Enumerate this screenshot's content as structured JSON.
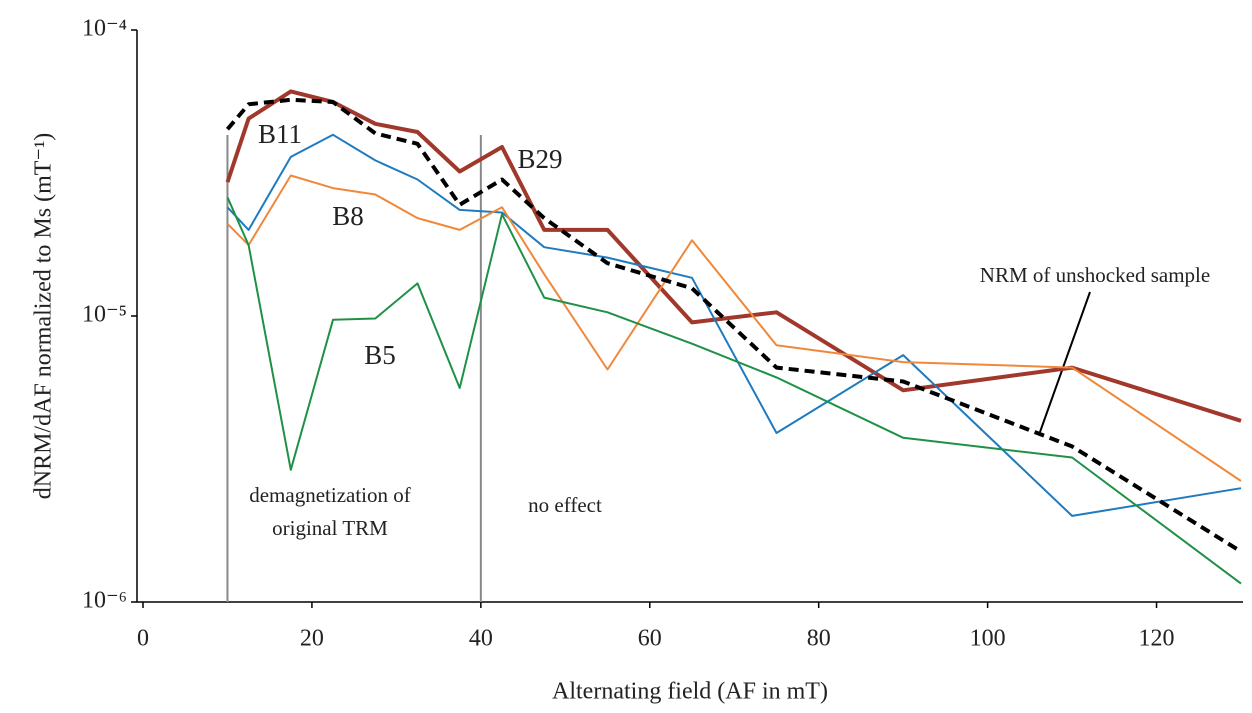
{
  "chart_data": {
    "type": "line",
    "x_label": "Alternating field (AF in mT)",
    "y_label": "dNRM/dAF normalized to Ms (mT⁻¹)",
    "x": [
      10,
      12.5,
      17.5,
      22.5,
      27.5,
      32.5,
      37.5,
      42.5,
      47.5,
      55,
      65,
      75,
      90,
      110,
      130
    ],
    "series": [
      {
        "name": "B29",
        "color": "#a0382b",
        "width": 4,
        "dash": false,
        "values": [
          2.94e-05,
          4.9e-05,
          6.1e-05,
          5.6e-05,
          4.7e-05,
          4.4e-05,
          3.2e-05,
          3.9e-05,
          2e-05,
          2e-05,
          9.5e-06,
          1.03e-05,
          5.5e-06,
          6.6e-06,
          4.3e-06
        ]
      },
      {
        "name": "B11",
        "color": "#1f7bbf",
        "width": 2,
        "dash": false,
        "values": [
          2.4e-05,
          2e-05,
          3.6e-05,
          4.3e-05,
          3.5e-05,
          3e-05,
          2.35e-05,
          2.3e-05,
          1.74e-05,
          1.6e-05,
          1.36e-05,
          3.9e-06,
          7.3e-06,
          2e-06,
          2.5e-06
        ]
      },
      {
        "name": "B8",
        "color": "#f0883a",
        "width": 2,
        "dash": false,
        "values": [
          2.1e-05,
          1.77e-05,
          3.1e-05,
          2.8e-05,
          2.66e-05,
          2.2e-05,
          2e-05,
          2.4e-05,
          1.4e-05,
          6.5e-06,
          1.84e-05,
          7.9e-06,
          6.9e-06,
          6.6e-06,
          2.65e-06
        ]
      },
      {
        "name": "B5",
        "color": "#1f9146",
        "width": 2,
        "dash": false,
        "values": [
          2.6e-05,
          1.77e-05,
          2.9e-06,
          9.7e-06,
          9.8e-06,
          1.3e-05,
          5.6e-06,
          2.27e-05,
          1.16e-05,
          1.03e-05,
          8e-06,
          6.1e-06,
          3.75e-06,
          3.2e-06,
          1.16e-06
        ]
      },
      {
        "name": "NRM of unshocked sample",
        "color": "#000000",
        "width": 4,
        "dash": true,
        "values": [
          4.5e-05,
          5.5e-05,
          5.7e-05,
          5.6e-05,
          4.35e-05,
          4e-05,
          2.45e-05,
          3e-05,
          2.2e-05,
          1.53e-05,
          1.25e-05,
          6.6e-06,
          5.9e-06,
          3.5e-06,
          1.5e-06
        ]
      }
    ],
    "xlim": [
      0,
      130
    ],
    "xticks": [
      0,
      20,
      40,
      60,
      80,
      100,
      120
    ],
    "ylim": [
      1e-06,
      0.0001
    ],
    "log_y": true,
    "yticks": [
      {
        "value": 1e-06,
        "label": "10⁻⁶"
      },
      {
        "value": 1e-05,
        "label": "10⁻⁵"
      },
      {
        "value": 0.0001,
        "label": "10⁻⁴"
      }
    ],
    "vlines": [
      10,
      40
    ],
    "annotations": [
      "demagnetization of",
      "original TRM",
      "no effect"
    ]
  }
}
